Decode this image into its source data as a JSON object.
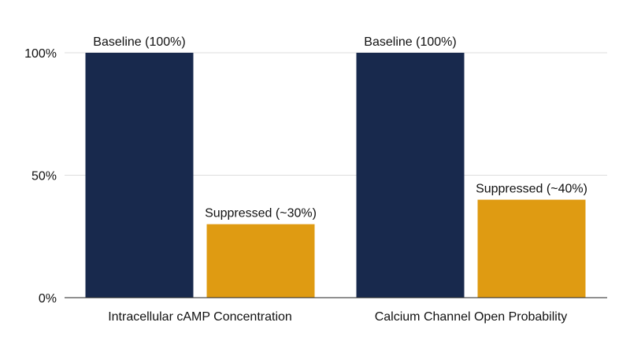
{
  "chart_data": {
    "type": "bar",
    "title": "",
    "xlabel": "",
    "ylabel": "",
    "categories": [
      "Intracellular cAMP Concentration",
      "Calcium Channel Open Probability"
    ],
    "series": [
      {
        "values": [
          100,
          100
        ],
        "color": "#18294d",
        "data_labels": [
          "Baseline (100%)",
          "Baseline (100%)"
        ]
      },
      {
        "values": [
          30,
          40
        ],
        "color": "#df9b12",
        "data_labels": [
          "Suppressed (~30%)",
          "Suppressed (~40%)"
        ]
      }
    ],
    "ylim": [
      0,
      100
    ],
    "yticks": [
      0,
      50,
      100
    ],
    "ytick_labels": [
      "0%",
      "50%",
      "100%"
    ],
    "grid": true,
    "legend": "none"
  }
}
